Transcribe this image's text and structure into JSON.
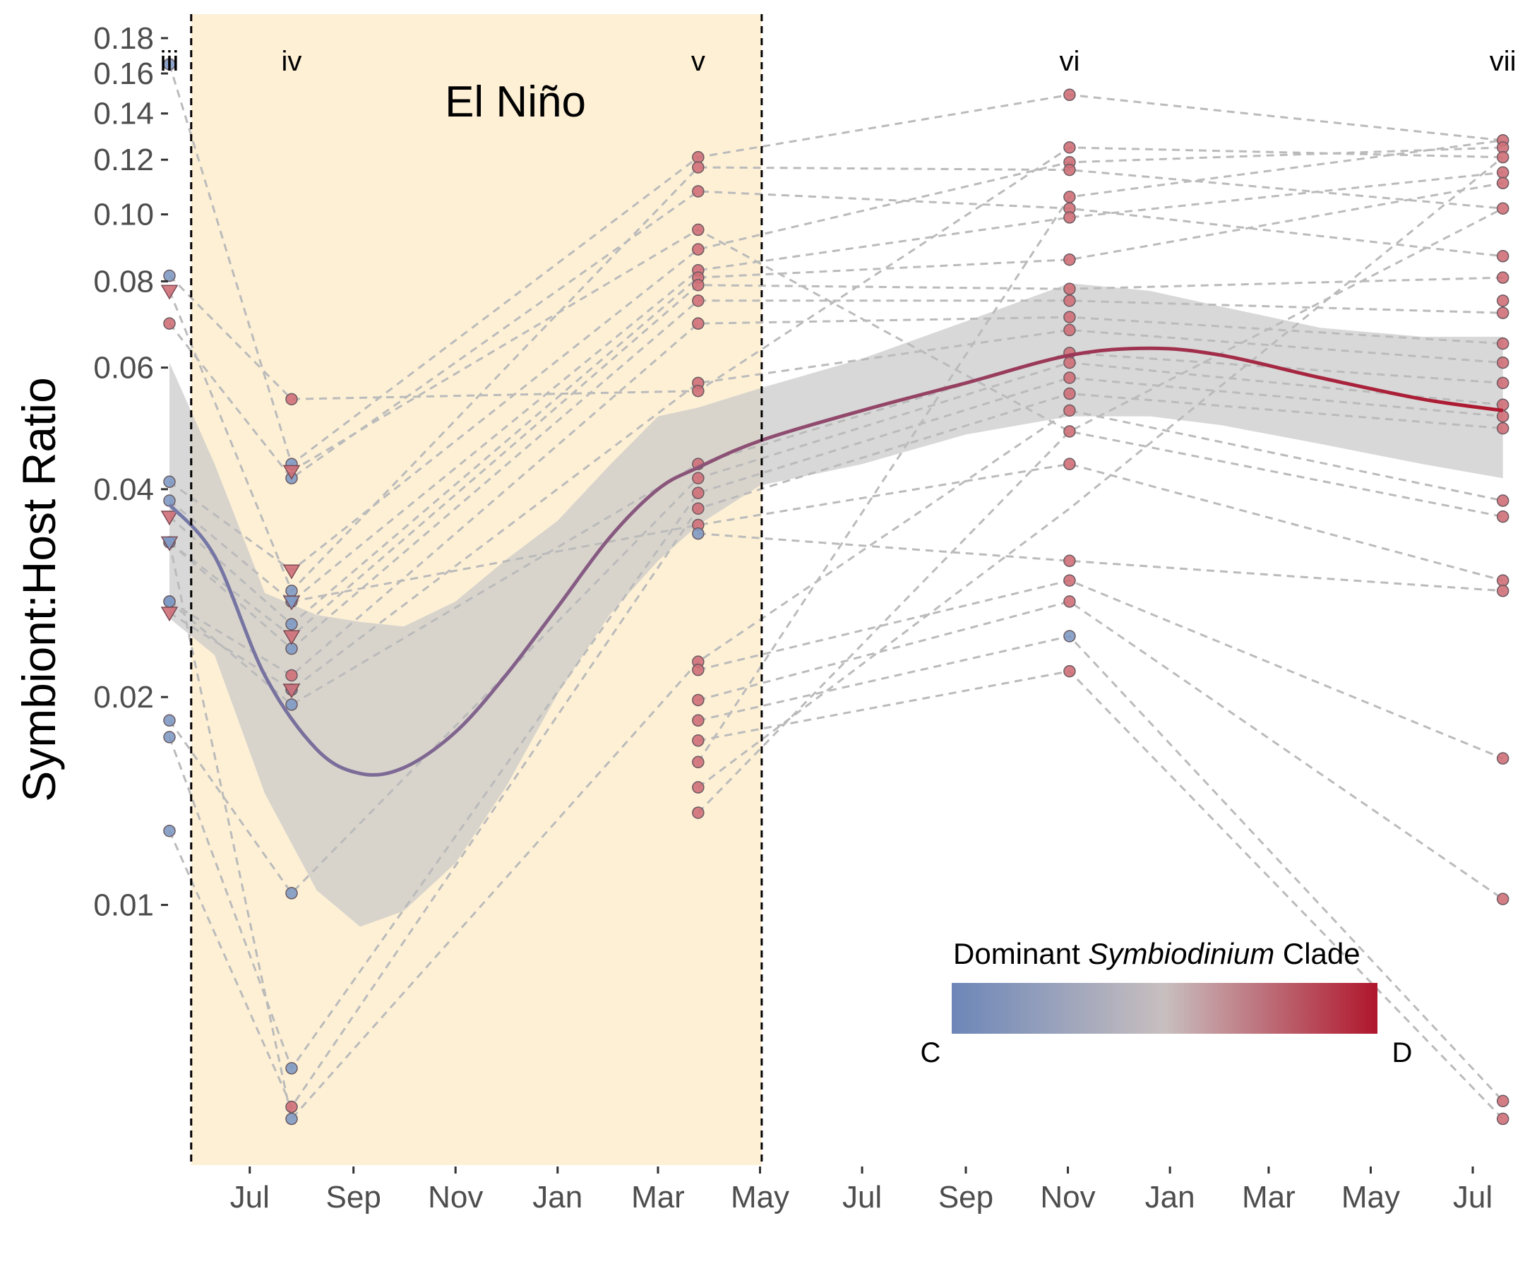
{
  "chart_data": {
    "type": "scatter",
    "title": "",
    "ylabel": "Symbiont:Host Ratio",
    "xlabel": "",
    "yscale": "log",
    "ylim": [
      0.0042,
      0.195
    ],
    "xlim": [
      "2015-05-14",
      "2017-07-28"
    ],
    "yticks": [
      {
        "value": 0.01,
        "label": "0.01"
      },
      {
        "value": 0.02,
        "label": "0.02"
      },
      {
        "value": 0.04,
        "label": "0.04"
      },
      {
        "value": 0.06,
        "label": "0.06"
      },
      {
        "value": 0.08,
        "label": "0.08"
      },
      {
        "value": 0.1,
        "label": "0.10"
      },
      {
        "value": 0.12,
        "label": "0.12"
      },
      {
        "value": 0.14,
        "label": "0.14"
      },
      {
        "value": 0.16,
        "label": "0.16"
      },
      {
        "value": 0.18,
        "label": "0.18"
      }
    ],
    "xticks": [
      {
        "date": "2015-07-01",
        "label": "Jul"
      },
      {
        "date": "2015-09-01",
        "label": "Sep"
      },
      {
        "date": "2015-11-01",
        "label": "Nov"
      },
      {
        "date": "2016-01-01",
        "label": "Jan"
      },
      {
        "date": "2016-03-01",
        "label": "Mar"
      },
      {
        "date": "2016-05-01",
        "label": "May"
      },
      {
        "date": "2016-07-01",
        "label": "Jul"
      },
      {
        "date": "2016-09-01",
        "label": "Sep"
      },
      {
        "date": "2016-11-01",
        "label": "Nov"
      },
      {
        "date": "2017-01-01",
        "label": "Jan"
      },
      {
        "date": "2017-03-01",
        "label": "Mar"
      },
      {
        "date": "2017-05-01",
        "label": "May"
      },
      {
        "date": "2017-07-01",
        "label": "Jul"
      }
    ],
    "el_nino": {
      "label": "El Niño",
      "start": "2015-05-27",
      "end": "2016-05-02",
      "color": "#fdf0d5"
    },
    "phases": [
      {
        "label": "iii",
        "date": "2015-05-14"
      },
      {
        "label": "iv",
        "date": "2015-07-26"
      },
      {
        "label": "v",
        "date": "2016-03-25"
      },
      {
        "label": "vi",
        "date": "2016-11-02"
      },
      {
        "label": "vii",
        "date": "2017-07-19"
      }
    ],
    "points": [
      {
        "date": "2015-05-14",
        "values": [
          0.165,
          0.0815,
          0.041,
          0.0385,
          0.0335,
          0.0335,
          0.0275,
          0.0275,
          0.0185,
          0.0175,
          0.0128
        ],
        "clades": [
          "C",
          "C",
          "C",
          "C",
          "C",
          "C",
          "C",
          "C",
          "C",
          "C",
          "C"
        ],
        "shape": "circle"
      },
      {
        "date": "2015-05-14",
        "values": [
          0.0695
        ],
        "clades": [
          "D"
        ],
        "shape": "circle"
      },
      {
        "date": "2015-05-14",
        "values": [
          0.0775,
          0.0365,
          0.0335,
          0.0265
        ],
        "clades": [
          "D",
          "D",
          "C",
          "D"
        ],
        "shape": "triangle"
      },
      {
        "date": "2015-07-26",
        "values": [
          0.054
        ],
        "clades": [
          "D"
        ],
        "shape": "circle"
      },
      {
        "date": "2015-07-26",
        "values": [
          0.0435,
          0.0415,
          0.0285,
          0.0275,
          0.0255,
          0.0235,
          0.0205,
          0.0195,
          0.0104,
          0.0058,
          0.0049
        ],
        "clades": [
          "C",
          "C",
          "C",
          "C",
          "C",
          "C",
          "C",
          "C",
          "C",
          "C",
          "C"
        ],
        "shape": "circle"
      },
      {
        "date": "2015-07-26",
        "values": [
          0.0215,
          0.0051
        ],
        "clades": [
          "D",
          "D"
        ],
        "shape": "circle"
      },
      {
        "date": "2015-07-26",
        "values": [
          0.0425,
          0.0305,
          0.0275,
          0.0245,
          0.0205
        ],
        "clades": [
          "D",
          "D",
          "C",
          "D",
          "D"
        ],
        "shape": "triangle"
      },
      {
        "date": "2016-03-25",
        "values": [
          0.121,
          0.117,
          0.108,
          0.095,
          0.089,
          0.083,
          0.081,
          0.079,
          0.075,
          0.0695,
          0.057,
          0.0555,
          0.0435,
          0.0415,
          0.0395,
          0.0375,
          0.0355,
          0.0225,
          0.0219,
          0.0198,
          0.0185,
          0.0173,
          0.0161,
          0.0148,
          0.0136
        ],
        "clades": [
          "D",
          "D",
          "D",
          "D",
          "D",
          "D",
          "D",
          "D",
          "D",
          "D",
          "D",
          "D",
          "D",
          "D",
          "D",
          "D",
          "D",
          "D",
          "D",
          "D",
          "D",
          "D",
          "D",
          "D",
          "D"
        ],
        "shape": "circle"
      },
      {
        "date": "2016-03-25",
        "values": [
          0.0345
        ],
        "clades": [
          "C"
        ],
        "shape": "circle"
      },
      {
        "date": "2016-11-02",
        "values": [
          0.149,
          0.125,
          0.119,
          0.116,
          0.106,
          0.102,
          0.099,
          0.086,
          0.078,
          0.075,
          0.071,
          0.068,
          0.063,
          0.061,
          0.058,
          0.055,
          0.052,
          0.0485,
          0.0435,
          0.0315,
          0.0295,
          0.0275,
          0.0218
        ],
        "clades": [
          "D",
          "D",
          "D",
          "D",
          "D",
          "D",
          "D",
          "D",
          "D",
          "D",
          "D",
          "D",
          "D",
          "D",
          "D",
          "D",
          "D",
          "D",
          "D",
          "D",
          "D",
          "D",
          "D"
        ],
        "shape": "circle"
      },
      {
        "date": "2016-11-02",
        "values": [
          0.0245
        ],
        "clades": [
          "C"
        ],
        "shape": "circle"
      },
      {
        "date": "2017-07-19",
        "values": [
          0.128,
          0.125,
          0.121,
          0.115,
          0.111,
          0.102,
          0.087,
          0.081,
          0.075,
          0.072,
          0.065,
          0.061,
          0.057,
          0.053,
          0.051,
          0.049,
          0.0385,
          0.0365,
          0.0295,
          0.0285,
          0.0163,
          0.0102,
          0.0052,
          0.0049
        ],
        "clades": [
          "D",
          "D",
          "D",
          "D",
          "D",
          "D",
          "D",
          "D",
          "D",
          "D",
          "D",
          "D",
          "D",
          "D",
          "D",
          "D",
          "D",
          "D",
          "D",
          "D",
          "D",
          "D",
          "D",
          "D"
        ],
        "shape": "circle"
      }
    ],
    "trajectories": [
      {
        "dates": [
          "2015-05-14",
          "2015-07-26",
          "2016-03-25",
          "2016-11-02",
          "2017-07-19"
        ],
        "values": [
          0.165,
          0.0435,
          0.121,
          0.149,
          0.128
        ]
      },
      {
        "dates": [
          "2015-05-14",
          "2015-07-26",
          "2016-03-25",
          "2016-11-02",
          "2017-07-19"
        ],
        "values": [
          0.0815,
          0.054,
          0.0555,
          0.125,
          0.121
        ]
      },
      {
        "dates": [
          "2015-05-14",
          "2015-07-26",
          "2016-03-25",
          "2016-11-02",
          "2017-07-19"
        ],
        "values": [
          0.0775,
          0.0285,
          0.117,
          0.116,
          0.102
        ]
      },
      {
        "dates": [
          "2015-05-14",
          "2015-07-26",
          "2016-03-25",
          "2016-11-02",
          "2017-07-19"
        ],
        "values": [
          0.0695,
          0.0415,
          0.108,
          0.102,
          0.087
        ]
      },
      {
        "dates": [
          "2015-05-14",
          "2015-07-26",
          "2016-03-25",
          "2016-11-02",
          "2017-07-19"
        ],
        "values": [
          0.041,
          0.0305,
          0.089,
          0.119,
          0.125
        ]
      },
      {
        "dates": [
          "2015-05-14",
          "2015-07-26",
          "2016-03-25",
          "2016-11-02",
          "2017-07-19"
        ],
        "values": [
          0.0385,
          0.0275,
          0.083,
          0.099,
          0.115
        ]
      },
      {
        "dates": [
          "2015-05-14",
          "2015-07-26",
          "2016-03-25",
          "2016-11-02",
          "2017-07-19"
        ],
        "values": [
          0.0365,
          0.0255,
          0.081,
          0.086,
          0.111
        ]
      },
      {
        "dates": [
          "2015-05-14",
          "2015-07-26",
          "2016-03-25",
          "2016-11-02",
          "2017-07-19"
        ],
        "values": [
          0.0335,
          0.0245,
          0.079,
          0.078,
          0.081
        ]
      },
      {
        "dates": [
          "2015-05-14",
          "2015-07-26",
          "2016-03-25",
          "2016-11-02",
          "2017-07-19"
        ],
        "values": [
          0.0335,
          0.0235,
          0.075,
          0.075,
          0.072
        ]
      },
      {
        "dates": [
          "2015-05-14",
          "2015-07-26",
          "2016-03-25",
          "2016-11-02",
          "2017-07-19"
        ],
        "values": [
          0.0275,
          0.0215,
          0.0695,
          0.071,
          0.065
        ]
      },
      {
        "dates": [
          "2015-05-14",
          "2015-07-26",
          "2016-03-25",
          "2016-11-02",
          "2017-07-19"
        ],
        "values": [
          0.0265,
          0.0205,
          0.057,
          0.068,
          0.061
        ]
      },
      {
        "dates": [
          "2015-05-14",
          "2015-07-26",
          "2016-03-25",
          "2016-11-02",
          "2017-07-19"
        ],
        "values": [
          0.0275,
          0.0195,
          0.0435,
          0.063,
          0.057
        ]
      },
      {
        "dates": [
          "2015-05-14",
          "2015-07-26",
          "2016-03-25",
          "2016-11-02",
          "2017-07-19"
        ],
        "values": [
          0.0185,
          0.0104,
          0.0415,
          0.061,
          0.053
        ]
      },
      {
        "dates": [
          "2015-05-14",
          "2015-07-26",
          "2016-03-25",
          "2016-11-02",
          "2017-07-19"
        ],
        "values": [
          0.0175,
          0.0058,
          0.0395,
          0.058,
          0.051
        ]
      },
      {
        "dates": [
          "2015-05-14",
          "2015-07-26",
          "2016-03-25",
          "2016-11-02",
          "2017-07-19"
        ],
        "values": [
          0.0128,
          0.0051,
          0.0375,
          0.055,
          0.049
        ]
      },
      {
        "dates": [
          "2015-05-14",
          "2015-07-26",
          "2016-03-25",
          "2016-11-02",
          "2017-07-19"
        ],
        "values": [
          0.0335,
          0.0049,
          0.0225,
          0.052,
          0.0385
        ]
      },
      {
        "dates": [
          "2015-07-26",
          "2016-03-25",
          "2016-11-02",
          "2017-07-19"
        ],
        "values": [
          0.0425,
          0.095,
          0.0485,
          0.0365
        ]
      },
      {
        "dates": [
          "2015-07-26",
          "2016-03-25",
          "2016-11-02",
          "2017-07-19"
        ],
        "values": [
          0.0275,
          0.0355,
          0.0435,
          0.0295
        ]
      },
      {
        "dates": [
          "2016-03-25",
          "2016-11-02",
          "2017-07-19"
        ],
        "values": [
          0.0345,
          0.0315,
          0.0285
        ]
      },
      {
        "dates": [
          "2016-03-25",
          "2016-11-02",
          "2017-07-19"
        ],
        "values": [
          0.0219,
          0.0295,
          0.0163
        ]
      },
      {
        "dates": [
          "2016-03-25",
          "2016-11-02",
          "2017-07-19"
        ],
        "values": [
          0.0198,
          0.0275,
          0.0102
        ]
      },
      {
        "dates": [
          "2016-03-25",
          "2016-11-02",
          "2017-07-19"
        ],
        "values": [
          0.0185,
          0.0245,
          0.0052
        ]
      },
      {
        "dates": [
          "2016-03-25",
          "2016-11-02",
          "2017-07-19"
        ],
        "values": [
          0.0173,
          0.0218,
          0.0049
        ]
      },
      {
        "dates": [
          "2016-03-25",
          "2016-11-02",
          "2017-07-19"
        ],
        "values": [
          0.0161,
          0.106,
          0.128
        ]
      },
      {
        "dates": [
          "2016-03-25",
          "2016-11-02",
          "2017-07-19"
        ],
        "values": [
          0.0148,
          0.0375,
          0.121
        ]
      },
      {
        "dates": [
          "2016-03-25",
          "2016-11-02",
          "2017-07-19"
        ],
        "values": [
          0.0136,
          0.0485,
          0.102
        ]
      }
    ],
    "fit": {
      "dates": [
        "2015-05-14",
        "2015-06-10",
        "2015-07-10",
        "2015-08-10",
        "2015-09-05",
        "2015-10-01",
        "2015-11-01",
        "2015-12-01",
        "2016-01-01",
        "2016-02-01",
        "2016-03-01",
        "2016-03-25",
        "2016-05-01",
        "2016-07-01",
        "2016-09-01",
        "2016-11-02",
        "2016-12-20",
        "2017-02-01",
        "2017-04-01",
        "2017-06-01",
        "2017-07-19"
      ],
      "values": [
        0.038,
        0.032,
        0.0215,
        0.0168,
        0.0155,
        0.0158,
        0.0178,
        0.0215,
        0.027,
        0.034,
        0.04,
        0.043,
        0.047,
        0.052,
        0.057,
        0.0625,
        0.064,
        0.0625,
        0.058,
        0.054,
        0.052
      ],
      "lower": [
        0.026,
        0.023,
        0.0145,
        0.0105,
        0.0093,
        0.0098,
        0.0115,
        0.0148,
        0.0202,
        0.0263,
        0.0315,
        0.0355,
        0.0405,
        0.0435,
        0.048,
        0.051,
        0.051,
        0.0495,
        0.0465,
        0.0435,
        0.0415
      ],
      "upper": [
        0.061,
        0.0435,
        0.0283,
        0.0263,
        0.0257,
        0.0253,
        0.0275,
        0.0316,
        0.036,
        0.0433,
        0.051,
        0.0525,
        0.056,
        0.0618,
        0.07,
        0.0795,
        0.0775,
        0.0735,
        0.0685,
        0.0665,
        0.0665
      ]
    },
    "colorbar": {
      "title_plain_1": "Dominant ",
      "title_italic": "Symbiodinium",
      "title_plain_2": " Clade",
      "low_label": "C",
      "high_label": "D",
      "low_color": "#6c86b8",
      "mid_color": "#c8bfbf",
      "high_color": "#b0162c"
    },
    "colors": {
      "shade": "#c7c7c7",
      "trajectory": "#bbbbbb",
      "clade_C": "#7f9ac4",
      "clade_D": "#cf6f78"
    }
  }
}
